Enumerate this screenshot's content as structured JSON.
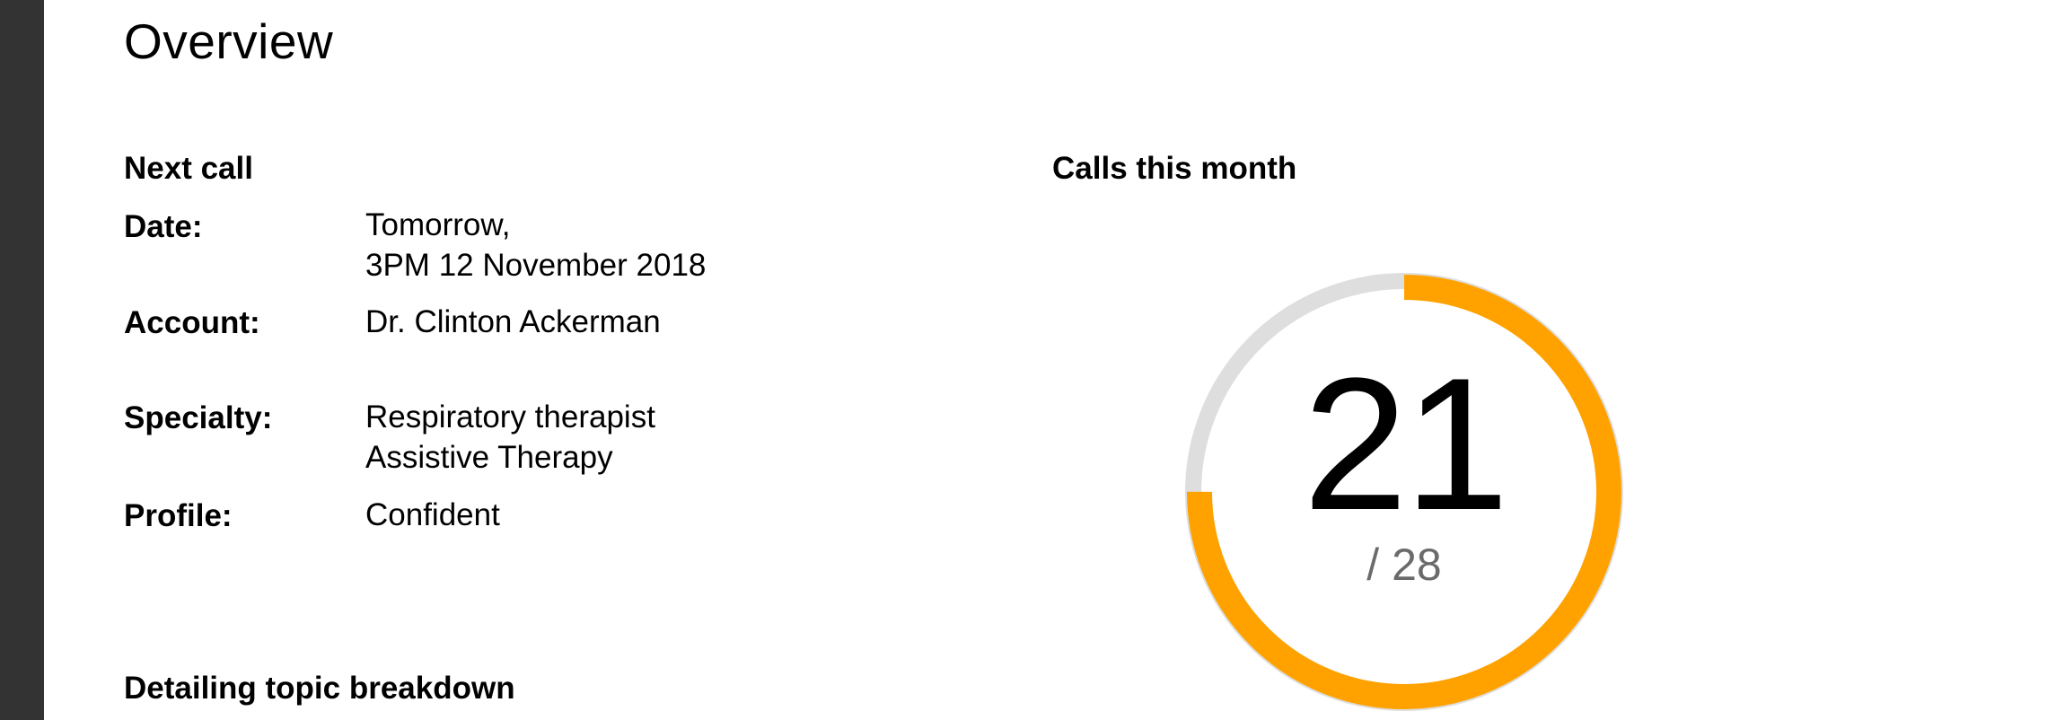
{
  "page": {
    "title": "Overview"
  },
  "next_call": {
    "heading": "Next call",
    "fields": [
      {
        "label": "Date:",
        "lines": [
          "Tomorrow,",
          "3PM 12 November 2018"
        ]
      },
      {
        "label": "Account:",
        "lines": [
          "Dr. Clinton Ackerman"
        ]
      },
      {
        "label": "Specialty:",
        "lines": [
          "Respiratory therapist",
          "Assistive Therapy"
        ]
      },
      {
        "label": "Profile:",
        "lines": [
          "Confident"
        ]
      }
    ]
  },
  "calls_this_month": {
    "heading": "Calls this month",
    "completed": "21",
    "total_label": "/ 28",
    "completed_value": 21,
    "total_value": 28
  },
  "detailing": {
    "heading": "Detailing topic breakdown"
  },
  "colors": {
    "sidebar": "#333333",
    "gauge_track": "#dedede",
    "gauge_progress": "#ffa200",
    "muted_text": "#6b6b6b"
  }
}
